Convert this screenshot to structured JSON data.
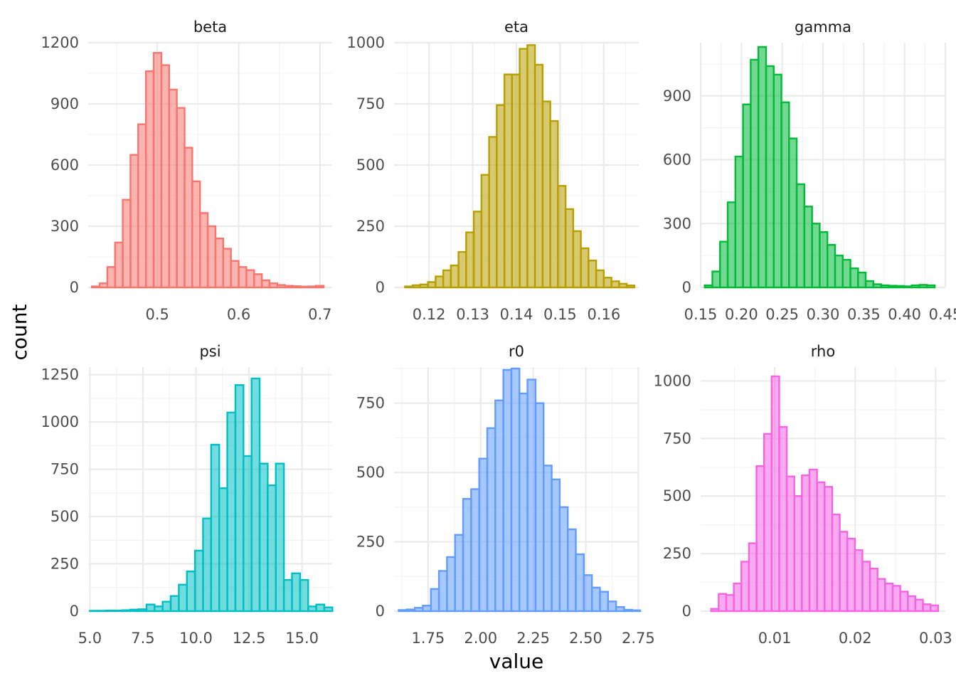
{
  "chart_data": {
    "type": "bar",
    "variant": "faceted-histogram",
    "xlabel": "value",
    "ylabel": "count",
    "grid": true,
    "panels": [
      {
        "name": "beta",
        "color": "#F8766D",
        "xlim": [
          0.415,
          0.715
        ],
        "ylim": [
          0,
          1200
        ],
        "xticks": [
          0.5,
          0.6,
          0.7
        ],
        "xtick_labels": [
          "0.5",
          "0.6",
          "0.7"
        ],
        "yticks": [
          0,
          300,
          600,
          900,
          1200
        ],
        "ytick_labels": [
          "0",
          "300",
          "600",
          "900",
          "1200"
        ],
        "bins": {
          "start": 0.4195,
          "width": 0.0095,
          "counts": [
            5,
            20,
            100,
            220,
            430,
            650,
            800,
            1060,
            1150,
            1090,
            970,
            880,
            685,
            520,
            365,
            300,
            240,
            190,
            130,
            100,
            85,
            65,
            35,
            20,
            12,
            8,
            6,
            4,
            5,
            8
          ]
        }
      },
      {
        "name": "eta",
        "color": "#B79F00",
        "xlim": [
          0.112,
          0.168
        ],
        "ylim": [
          0,
          1000
        ],
        "xticks": [
          0.12,
          0.13,
          0.14,
          0.15,
          0.16
        ],
        "xtick_labels": [
          "0.12",
          "0.13",
          "0.14",
          "0.15",
          "0.16"
        ],
        "yticks": [
          0,
          250,
          500,
          750,
          1000
        ],
        "ytick_labels": [
          "0",
          "250",
          "500",
          "750",
          "1000"
        ],
        "bins": {
          "start": 0.1145,
          "width": 0.00175,
          "counts": [
            4,
            9,
            12,
            22,
            45,
            70,
            90,
            145,
            225,
            310,
            460,
            615,
            745,
            870,
            870,
            975,
            990,
            910,
            760,
            680,
            415,
            320,
            230,
            160,
            110,
            70,
            40,
            25,
            15,
            8
          ]
        }
      },
      {
        "name": "gamma",
        "color": "#00BA38",
        "xlim": [
          0.15,
          0.45
        ],
        "ylim": [
          0,
          1150
        ],
        "xticks": [
          0.15,
          0.2,
          0.25,
          0.3,
          0.35,
          0.4,
          0.45
        ],
        "xtick_labels": [
          "0.15",
          "0.20",
          "0.25",
          "0.30",
          "0.35",
          "0.40",
          "0.45"
        ],
        "yticks": [
          0,
          300,
          600,
          900
        ],
        "ytick_labels": [
          "0",
          "300",
          "600",
          "900"
        ],
        "bins": {
          "start": 0.155,
          "width": 0.0094,
          "counts": [
            10,
            75,
            215,
            400,
            615,
            860,
            1070,
            1130,
            1040,
            1000,
            870,
            700,
            485,
            380,
            300,
            260,
            200,
            150,
            130,
            90,
            70,
            30,
            15,
            10,
            8,
            7,
            5,
            10,
            12,
            10
          ]
        }
      },
      {
        "name": "psi",
        "color": "#00BFC4",
        "xlim": [
          4.92,
          16.42
        ],
        "ylim": [
          0,
          1290
        ],
        "xticks": [
          5.0,
          7.5,
          10.0,
          12.5,
          15.0
        ],
        "xtick_labels": [
          "5.0",
          "7.5",
          "10.0",
          "12.5",
          "15.0"
        ],
        "yticks": [
          0,
          250,
          500,
          750,
          1000,
          1250
        ],
        "ytick_labels": [
          "0",
          "250",
          "500",
          "750",
          "1000",
          "1250"
        ],
        "bins": {
          "start": 5.0,
          "width": 0.381,
          "counts": [
            2,
            2,
            3,
            3,
            5,
            8,
            10,
            35,
            25,
            50,
            80,
            140,
            210,
            320,
            490,
            880,
            650,
            1050,
            1195,
            820,
            1230,
            780,
            665,
            780,
            165,
            200,
            165,
            25,
            35,
            20
          ]
        }
      },
      {
        "name": "r0",
        "color": "#619CFF",
        "xlim": [
          1.588,
          2.752
        ],
        "ylim": [
          0,
          880
        ],
        "xticks": [
          1.75,
          2.0,
          2.25,
          2.5,
          2.75
        ],
        "xtick_labels": [
          "1.75",
          "2.00",
          "2.25",
          "2.50",
          "2.75"
        ],
        "yticks": [
          0,
          250,
          500,
          750
        ],
        "ytick_labels": [
          "0",
          "250",
          "500",
          "750"
        ],
        "bins": {
          "start": 1.61,
          "width": 0.0383,
          "counts": [
            4,
            6,
            12,
            20,
            80,
            145,
            195,
            275,
            405,
            440,
            550,
            660,
            760,
            870,
            875,
            785,
            835,
            750,
            525,
            475,
            375,
            295,
            205,
            130,
            85,
            70,
            35,
            15,
            5,
            3
          ]
        }
      },
      {
        "name": "rho",
        "color": "#F564E3",
        "xlim": [
          0.0008,
          0.0312
        ],
        "ylim": [
          0,
          1060
        ],
        "xticks": [
          0.01,
          0.02,
          0.03
        ],
        "xtick_labels": [
          "0.01",
          "0.02",
          "0.03"
        ],
        "yticks": [
          0,
          250,
          500,
          750,
          1000
        ],
        "ytick_labels": [
          "0",
          "250",
          "500",
          "750",
          "1000"
        ],
        "bins": {
          "start": 0.0021,
          "width": 0.00094,
          "counts": [
            10,
            75,
            70,
            120,
            215,
            295,
            630,
            770,
            1020,
            800,
            585,
            500,
            590,
            615,
            560,
            540,
            420,
            345,
            315,
            265,
            215,
            185,
            140,
            120,
            110,
            85,
            65,
            50,
            30,
            25
          ]
        }
      }
    ]
  }
}
